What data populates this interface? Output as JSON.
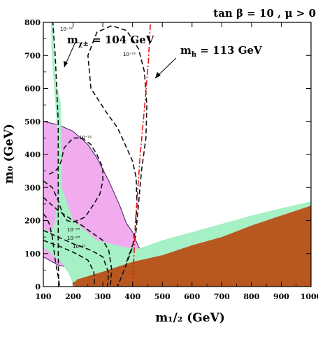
{
  "chart_data": {
    "type": "area",
    "title": "tan β = 10 ,  μ > 0",
    "xlabel": "m₁/₂ (GeV)",
    "ylabel": "m₀ (GeV)",
    "xlim": [
      100,
      1000
    ],
    "ylim": [
      0,
      800
    ],
    "x_ticks": [
      100,
      200,
      300,
      400,
      500,
      600,
      700,
      800,
      900,
      1000
    ],
    "y_ticks": [
      0,
      100,
      200,
      300,
      400,
      500,
      600,
      700,
      800
    ],
    "grid": false,
    "legend": "none",
    "colors": {
      "charged_lsp": "#b8571f",
      "relic_density": "#a6f0c6",
      "g_minus_2": "#f0a3ee",
      "g_minus_2_edge": "#3a1f5e",
      "higgs_limit": "#ee1111",
      "contour": "#111111"
    },
    "regions": [
      {
        "name": "charged LSP",
        "boundary": [
          [
            205,
            0
          ],
          [
            200,
            10
          ],
          [
            215,
            22
          ],
          [
            300,
            45
          ],
          [
            400,
            75
          ],
          [
            500,
            95
          ],
          [
            600,
            125
          ],
          [
            700,
            150
          ],
          [
            800,
            185
          ],
          [
            900,
            215
          ],
          [
            1000,
            245
          ],
          [
            1000,
            0
          ]
        ]
      },
      {
        "name": "relic density (upper strip)",
        "boundary": [
          [
            126,
            800
          ],
          [
            135,
            800
          ],
          [
            136,
            720
          ],
          [
            140,
            650
          ],
          [
            146,
            600
          ],
          [
            158,
            560
          ],
          [
            160,
            500
          ],
          [
            162,
            300
          ],
          [
            200,
            200
          ],
          [
            280,
            140
          ],
          [
            370,
            120
          ],
          [
            420,
            115
          ],
          [
            500,
            140
          ],
          [
            600,
            165
          ],
          [
            700,
            190
          ],
          [
            800,
            215
          ],
          [
            900,
            237
          ],
          [
            1000,
            258
          ],
          [
            1000,
            245
          ],
          [
            900,
            215
          ],
          [
            800,
            185
          ],
          [
            700,
            150
          ],
          [
            600,
            125
          ],
          [
            500,
            95
          ],
          [
            420,
            72
          ],
          [
            360,
            60
          ],
          [
            300,
            45
          ],
          [
            215,
            22
          ],
          [
            200,
            10
          ],
          [
            195,
            20
          ],
          [
            185,
            40
          ],
          [
            170,
            60
          ],
          [
            150,
            90
          ],
          [
            120,
            130
          ],
          [
            100,
            140
          ],
          [
            100,
            175
          ],
          [
            125,
            160
          ],
          [
            140,
            200
          ],
          [
            150,
            300
          ],
          [
            148,
            450
          ],
          [
            140,
            560
          ],
          [
            132,
            650
          ],
          [
            127,
            730
          ]
        ]
      },
      {
        "name": "relic density (lower band)",
        "boundary": [
          [
            100,
            175
          ],
          [
            130,
            160
          ],
          [
            160,
            140
          ],
          [
            200,
            125
          ],
          [
            280,
            110
          ],
          [
            370,
            105
          ],
          [
            420,
            100
          ],
          [
            440,
            70
          ],
          [
            380,
            62
          ],
          [
            300,
            55
          ],
          [
            220,
            58
          ],
          [
            180,
            65
          ],
          [
            150,
            80
          ],
          [
            120,
            105
          ],
          [
            100,
            120
          ]
        ]
      },
      {
        "name": "g-2 preferred",
        "boundary": [
          [
            100,
            500
          ],
          [
            150,
            490
          ],
          [
            200,
            470
          ],
          [
            250,
            430
          ],
          [
            280,
            390
          ],
          [
            320,
            320
          ],
          [
            355,
            250
          ],
          [
            380,
            190
          ],
          [
            400,
            165
          ],
          [
            420,
            120
          ],
          [
            440,
            100
          ],
          [
            420,
            70
          ],
          [
            350,
            60
          ],
          [
            300,
            55
          ],
          [
            200,
            55
          ],
          [
            150,
            65
          ],
          [
            120,
            80
          ],
          [
            100,
            90
          ]
        ]
      }
    ],
    "higgs_line": {
      "name": "m_h = 113 GeV",
      "points": [
        [
          400,
          0
        ],
        [
          405,
          100
        ],
        [
          410,
          200
        ],
        [
          418,
          300
        ],
        [
          426,
          400
        ],
        [
          436,
          500
        ],
        [
          446,
          600
        ],
        [
          453,
          680
        ],
        [
          460,
          800
        ]
      ]
    },
    "dashed_contours": [
      {
        "name": "m_χ± = 104 GeV",
        "points": [
          [
            152,
            0
          ],
          [
            150,
            100
          ],
          [
            150,
            200
          ],
          [
            150,
            300
          ],
          [
            150,
            400
          ],
          [
            150,
            500
          ],
          [
            145,
            600
          ],
          [
            140,
            700
          ],
          [
            132,
            800
          ]
        ]
      },
      {
        "name": "contour 10^-22",
        "points": [
          [
            380,
            75
          ],
          [
            410,
            150
          ],
          [
            420,
            250
          ],
          [
            430,
            350
          ],
          [
            445,
            450
          ],
          [
            448,
            550
          ],
          [
            440,
            650
          ],
          [
            420,
            720
          ],
          [
            380,
            775
          ],
          [
            330,
            790
          ],
          [
            280,
            770
          ],
          [
            250,
            700
          ],
          [
            260,
            600
          ],
          [
            310,
            530
          ],
          [
            350,
            480
          ],
          [
            380,
            420
          ],
          [
            400,
            380
          ],
          [
            412,
            330
          ],
          [
            415,
            250
          ],
          [
            410,
            180
          ],
          [
            400,
            120
          ],
          [
            380,
            70
          ],
          [
            350,
            0
          ]
        ]
      },
      {
        "name": "contour 10^-21",
        "points": [
          [
            100,
            320
          ],
          [
            130,
            300
          ],
          [
            150,
            260
          ],
          [
            165,
            220
          ],
          [
            180,
            200
          ],
          [
            200,
            195
          ],
          [
            240,
            210
          ],
          [
            270,
            250
          ],
          [
            290,
            280
          ],
          [
            300,
            320
          ],
          [
            300,
            360
          ],
          [
            280,
            400
          ],
          [
            260,
            430
          ],
          [
            230,
            450
          ],
          [
            200,
            450
          ],
          [
            170,
            420
          ],
          [
            160,
            380
          ],
          [
            150,
            360
          ],
          [
            140,
            350
          ],
          [
            120,
            340
          ]
        ]
      },
      {
        "name": "contour 10^-24",
        "points": [
          [
            100,
            270
          ],
          [
            150,
            230
          ],
          [
            200,
            200
          ],
          [
            230,
            185
          ],
          [
            260,
            165
          ],
          [
            300,
            140
          ],
          [
            320,
            110
          ],
          [
            330,
            50
          ],
          [
            325,
            0
          ]
        ]
      },
      {
        "name": "contour 10^-23",
        "points": [
          [
            100,
            170
          ],
          [
            150,
            150
          ],
          [
            200,
            130
          ],
          [
            260,
            110
          ],
          [
            300,
            90
          ],
          [
            320,
            40
          ],
          [
            315,
            0
          ]
        ]
      },
      {
        "name": "contour 10^-25",
        "points": [
          [
            100,
            140
          ],
          [
            160,
            120
          ],
          [
            210,
            100
          ],
          [
            250,
            80
          ],
          [
            270,
            45
          ],
          [
            272,
            0
          ]
        ]
      },
      {
        "name": "left edge curve",
        "points": [
          [
            100,
            220
          ],
          [
            110,
            210
          ],
          [
            120,
            190
          ],
          [
            130,
            150
          ],
          [
            140,
            80
          ],
          [
            150,
            30
          ],
          [
            155,
            0
          ]
        ]
      }
    ],
    "contour_labels": [
      "10⁻²²",
      "10⁻²¹",
      "10⁻²²",
      "10⁻²⁴",
      "10⁻²³",
      "10⁻²⁵"
    ],
    "annotations": [
      {
        "label_main": "m",
        "label_sub": "χ±",
        "label_rest": " = 104 GeV"
      },
      {
        "label_main": "m",
        "label_sub": "h",
        "label_rest": "  = 113 GeV"
      }
    ]
  }
}
